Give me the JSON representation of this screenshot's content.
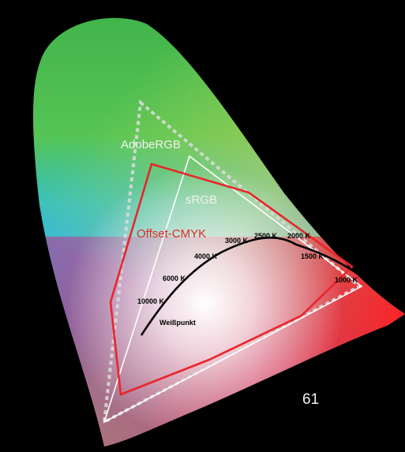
{
  "gamut_labels": {
    "adobe": "AdobeRGB",
    "srgb": "sRGB",
    "cmyk": "Offset-CMYK"
  },
  "planck_labels": {
    "k1000": "1000 K",
    "k1500": "1500 K",
    "k2000": "2000 K",
    "k2500": "2500 K",
    "k3000": "3000 K",
    "k4000": "4000 K",
    "k6000": "6000 K",
    "k10000": "10000 K",
    "whitepoint": "Weißpunkt"
  },
  "page_number": "61",
  "colors": {
    "background": "#000000",
    "adobe_outline": "#d9d9d9",
    "srgb_outline": "#ffffff",
    "cmyk_outline": "#e8262a",
    "locus_curve": "#000000",
    "label_white": "#f2f2f2",
    "label_red": "#e8262a"
  }
}
